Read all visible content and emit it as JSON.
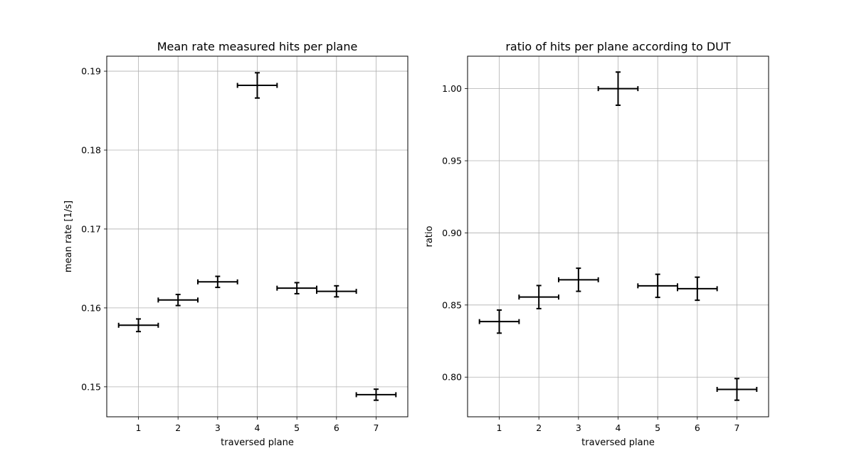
{
  "chart_data": [
    {
      "type": "scatter",
      "title": "Mean rate measured hits per plane",
      "xlabel": "traversed plane",
      "ylabel": "mean rate [1/s]",
      "xlim": [
        0.2,
        7.8
      ],
      "ylim": [
        0.1462,
        0.1919
      ],
      "xticks": [
        1,
        2,
        3,
        4,
        5,
        6,
        7
      ],
      "yticks": [
        0.15,
        0.16,
        0.17,
        0.18,
        0.19
      ],
      "ytick_labels": [
        "0.15",
        "0.16",
        "0.17",
        "0.18",
        "0.19"
      ],
      "grid": true,
      "x": [
        1,
        2,
        3,
        4,
        5,
        6,
        7
      ],
      "y": [
        0.1578,
        0.161,
        0.1633,
        0.1882,
        0.1625,
        0.1621,
        0.149
      ],
      "xerr": [
        0.5,
        0.5,
        0.5,
        0.5,
        0.5,
        0.5,
        0.5
      ],
      "yerr": [
        0.0008,
        0.0007,
        0.0007,
        0.0016,
        0.0007,
        0.0007,
        0.0007
      ]
    },
    {
      "type": "scatter",
      "title": "ratio of hits per plane according to DUT",
      "xlabel": "traversed plane",
      "ylabel": "ratio",
      "xlim": [
        0.2,
        7.8
      ],
      "ylim": [
        0.7725,
        1.0225
      ],
      "xticks": [
        1,
        2,
        3,
        4,
        5,
        6,
        7
      ],
      "yticks": [
        0.8,
        0.85,
        0.9,
        0.95,
        1.0
      ],
      "ytick_labels": [
        "0.80",
        "0.85",
        "0.90",
        "0.95",
        "1.00"
      ],
      "grid": true,
      "x": [
        1,
        2,
        3,
        4,
        5,
        6,
        7
      ],
      "y": [
        0.8385,
        0.8555,
        0.8675,
        1.0,
        0.8633,
        0.8613,
        0.7915
      ],
      "xerr": [
        0.5,
        0.5,
        0.5,
        0.5,
        0.5,
        0.5,
        0.5
      ],
      "yerr": [
        0.008,
        0.008,
        0.008,
        0.0115,
        0.008,
        0.008,
        0.0075
      ]
    }
  ]
}
